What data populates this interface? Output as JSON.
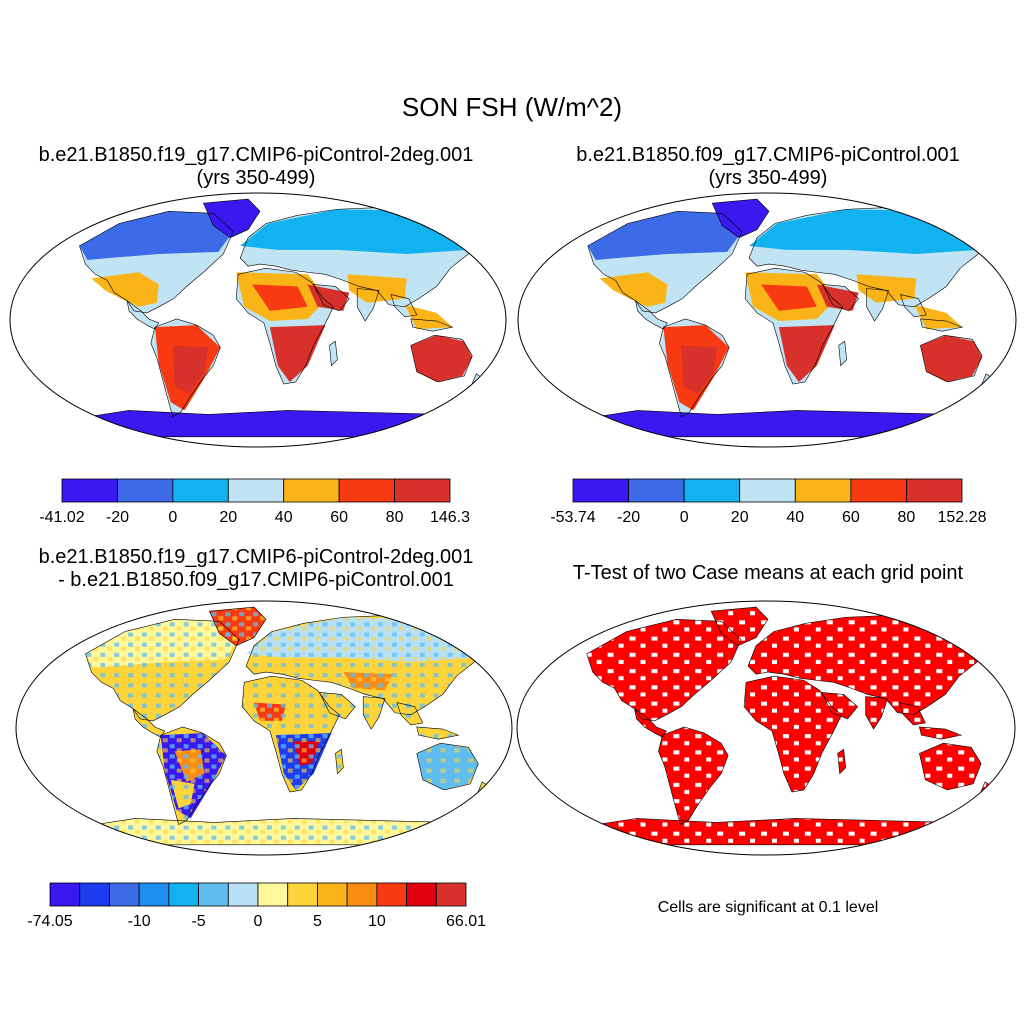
{
  "title": "SON FSH (W/m^2)",
  "panels": [
    {
      "title_line1": "b.e21.B1850.f19_g17.CMIP6-piControl-2deg.001",
      "title_line2": "(yrs 350-499)",
      "colorbar": {
        "colors": [
          "#3a18f0",
          "#3d6ae6",
          "#12b2ee",
          "#c0e4f4",
          "#fbb417",
          "#f83a12",
          "#d8302b"
        ],
        "labels": [
          "-41.02",
          "-20",
          "0",
          "20",
          "40",
          "60",
          "80",
          "146.3"
        ]
      }
    },
    {
      "title_line1": "b.e21.B1850.f09_g17.CMIP6-piControl.001",
      "title_line2": "(yrs 350-499)",
      "colorbar": {
        "colors": [
          "#3a18f0",
          "#3d6ae6",
          "#12b2ee",
          "#c0e4f4",
          "#fbb417",
          "#f83a12",
          "#d8302b"
        ],
        "labels": [
          "-53.74",
          "-20",
          "0",
          "20",
          "40",
          "60",
          "80",
          "152.28"
        ]
      }
    },
    {
      "title_line1": "b.e21.B1850.f19_g17.CMIP6-piControl-2deg.001",
      "title_line2": "- b.e21.B1850.f09_g17.CMIP6-piControl.001",
      "colorbar": {
        "colors": [
          "#3a18f0",
          "#1e3cf0",
          "#3d6ae6",
          "#1e8ef0",
          "#12b2ee",
          "#60bdf0",
          "#b7e0f4",
          "#fff89a",
          "#fdd53b",
          "#fbb417",
          "#fb8c12",
          "#f83a12",
          "#e00010",
          "#d8302b"
        ],
        "labels": [
          "-74.05",
          "-10",
          "-5",
          "0",
          "5",
          "10",
          "66.01"
        ]
      }
    },
    {
      "title_line1": "T-Test of two Case means at each grid point",
      "note": "Cells are significant at 0.1 level"
    }
  ],
  "palette": {
    "ocean": "#ffffff",
    "coast": "#000000",
    "significant": "#ff0000"
  }
}
